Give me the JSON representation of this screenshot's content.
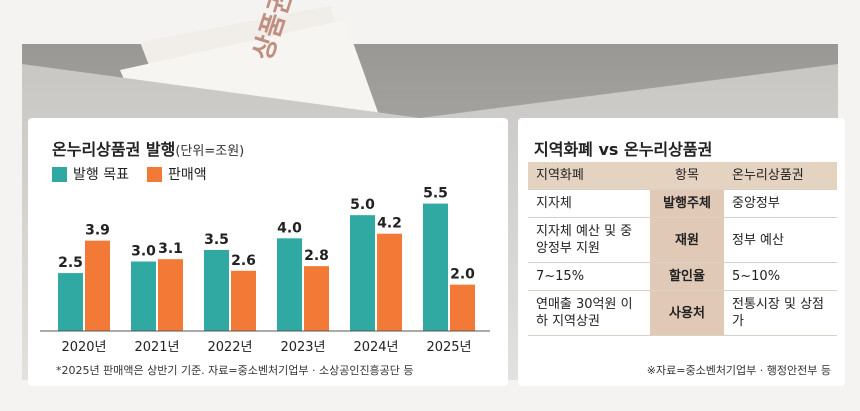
{
  "illustration": {
    "envelope_stamp_text": "상품권"
  },
  "chart_data": {
    "type": "bar",
    "title": "온누리상품권 발행",
    "unit_note": "(단위=조원)",
    "categories": [
      "2020년",
      "2021년",
      "2022년",
      "2023년",
      "2024년",
      "2025년"
    ],
    "series": [
      {
        "name": "발행 목표",
        "color": "#2fa9a2",
        "values": [
          2.5,
          3.0,
          3.5,
          4.0,
          5.0,
          5.5
        ]
      },
      {
        "name": "판매액",
        "color": "#f27a36",
        "values": [
          3.9,
          3.1,
          2.6,
          2.8,
          4.2,
          2.0
        ]
      }
    ],
    "value_labels": [
      [
        "2.5",
        "3.0",
        "3.5",
        "4.0",
        "5.0",
        "5.5"
      ],
      [
        "3.9",
        "3.1",
        "2.6",
        "2.8",
        "4.2",
        "2.0"
      ]
    ],
    "ylim": [
      0,
      6
    ],
    "grid": false,
    "legend_position": "top-left",
    "footnote": "*2025년 판매액은 상반기 기준. 자료=중소벤처기업부 · 소상공인진흥공단 등"
  },
  "comparison": {
    "title": "지역화폐 vs 온누리상품권",
    "header": {
      "left": "지역화폐",
      "mid": "항목",
      "right": "온누리상품권"
    },
    "rows": [
      {
        "left": "지자체",
        "mid": "발행주체",
        "right": "중앙정부"
      },
      {
        "left": "지자체 예산 및 중앙정부 지원",
        "mid": "재원",
        "right": "정부 예산"
      },
      {
        "left": "7~15%",
        "mid": "할인율",
        "right": "5~10%"
      },
      {
        "left": "연매출 30억원 이하 지역상권",
        "mid": "사용처",
        "right": "전통시장 및 상점가"
      }
    ],
    "footnote": "※자료=중소벤처기업부 · 행정안전부 등"
  }
}
